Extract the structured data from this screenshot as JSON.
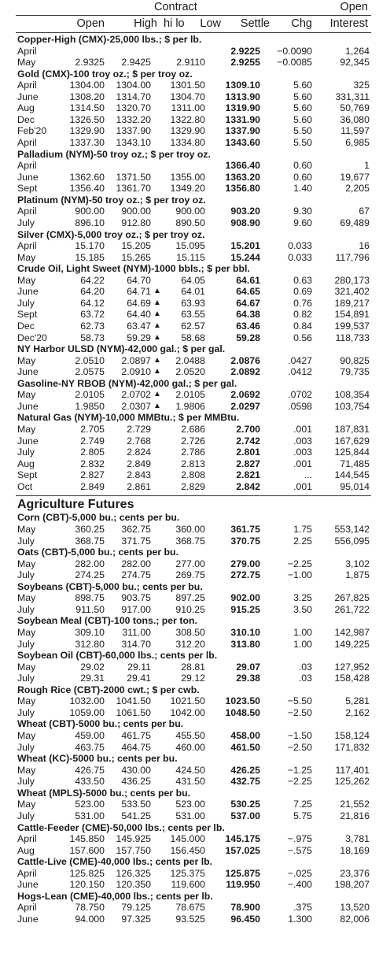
{
  "header": {
    "contract": "Contract",
    "open_interest_top": "Open",
    "columns": [
      "Open",
      "High",
      "hi lo",
      "Low",
      "Settle",
      "Chg",
      "Interest"
    ]
  },
  "metals_energy": [
    {
      "title": "Copper-High (CMX)-25,000 lbs.; $ per lb.",
      "rows": [
        {
          "name": "April",
          "open": "",
          "high": "",
          "low": "",
          "settle": "2.9225",
          "chg": "−0.0090",
          "oi": "1,264"
        },
        {
          "name": "May",
          "open": "2.9325",
          "high": "2.9425",
          "low": "2.9110",
          "settle": "2.9255",
          "chg": "−0.0085",
          "oi": "92,345"
        }
      ]
    },
    {
      "title": "Gold (CMX)-100 troy oz.; $ per troy oz.",
      "rows": [
        {
          "name": "April",
          "open": "1304.00",
          "high": "1304.00",
          "low": "1301.50",
          "settle": "1309.10",
          "chg": "5.60",
          "oi": "325"
        },
        {
          "name": "June",
          "open": "1308.20",
          "high": "1314.70",
          "low": "1304.70",
          "settle": "1313.90",
          "chg": "5.60",
          "oi": "331,311"
        },
        {
          "name": "Aug",
          "open": "1314.50",
          "high": "1320.70",
          "low": "1311.00",
          "settle": "1319.90",
          "chg": "5.60",
          "oi": "50,769"
        },
        {
          "name": "Dec",
          "open": "1326.50",
          "high": "1332.20",
          "low": "1322.80",
          "settle": "1331.90",
          "chg": "5.60",
          "oi": "36,080"
        },
        {
          "name": "Feb'20",
          "open": "1329.90",
          "high": "1337.90",
          "low": "1329.90",
          "settle": "1337.90",
          "chg": "5.50",
          "oi": "11,597"
        },
        {
          "name": "April",
          "open": "1337.30",
          "high": "1343.10",
          "low": "1334.80",
          "settle": "1343.60",
          "chg": "5.50",
          "oi": "6,985"
        }
      ]
    },
    {
      "title": "Palladium (NYM)-50 troy oz.; $ per troy oz.",
      "rows": [
        {
          "name": "April",
          "open": "",
          "high": "",
          "low": "",
          "settle": "1366.40",
          "chg": "0.60",
          "oi": "1"
        },
        {
          "name": "June",
          "open": "1362.60",
          "high": "1371.50",
          "low": "1355.00",
          "settle": "1363.20",
          "chg": "0.60",
          "oi": "19,677"
        },
        {
          "name": "Sept",
          "open": "1356.40",
          "high": "1361.70",
          "low": "1349.20",
          "settle": "1356.80",
          "chg": "1.40",
          "oi": "2,205"
        }
      ]
    },
    {
      "title": "Platinum (NYM)-50 troy oz.; $ per troy oz.",
      "rows": [
        {
          "name": "April",
          "open": "900.00",
          "high": "900.00",
          "low": "900.00",
          "settle": "903.20",
          "chg": "9.30",
          "oi": "67"
        },
        {
          "name": "July",
          "open": "896.10",
          "high": "912.80",
          "low": "890.50",
          "settle": "908.90",
          "chg": "9.60",
          "oi": "69,489"
        }
      ]
    },
    {
      "title": "Silver (CMX)-5,000 troy oz.; $ per troy oz.",
      "rows": [
        {
          "name": "April",
          "open": "15.170",
          "high": "15.205",
          "low": "15.095",
          "settle": "15.201",
          "chg": "0.033",
          "oi": "16"
        },
        {
          "name": "May",
          "open": "15.185",
          "high": "15.265",
          "low": "15.115",
          "settle": "15.244",
          "chg": "0.033",
          "oi": "117,796"
        }
      ]
    },
    {
      "title": "Crude Oil, Light Sweet (NYM)-1000 bbls.; $ per bbl.",
      "rows": [
        {
          "name": "May",
          "open": "64.22",
          "high": "64.70",
          "low": "64.05",
          "settle": "64.61",
          "chg": "0.63",
          "oi": "280,173"
        },
        {
          "name": "June",
          "open": "64.20",
          "high": "64.71",
          "hilo": "▲",
          "low": "64.01",
          "settle": "64.65",
          "chg": "0.69",
          "oi": "321,402"
        },
        {
          "name": "July",
          "open": "64.12",
          "high": "64.69",
          "hilo": "▲",
          "low": "63.93",
          "settle": "64.67",
          "chg": "0.76",
          "oi": "189,217"
        },
        {
          "name": "Sept",
          "open": "63.72",
          "high": "64.40",
          "hilo": "▲",
          "low": "63.55",
          "settle": "64.38",
          "chg": "0.82",
          "oi": "154,891"
        },
        {
          "name": "Dec",
          "open": "62.73",
          "high": "63.47",
          "hilo": "▲",
          "low": "62.57",
          "settle": "63.46",
          "chg": "0.84",
          "oi": "199,537"
        },
        {
          "name": "Dec'20",
          "open": "58.73",
          "high": "59.29",
          "hilo": "▲",
          "low": "58.68",
          "settle": "59.28",
          "chg": "0.56",
          "oi": "118,733"
        }
      ]
    },
    {
      "title": "NY Harbor ULSD (NYM)-42,000 gal.; $ per gal.",
      "rows": [
        {
          "name": "May",
          "open": "2.0510",
          "high": "2.0897",
          "hilo": "▲",
          "low": "2.0488",
          "settle": "2.0876",
          "chg": ".0427",
          "oi": "90,825"
        },
        {
          "name": "June",
          "open": "2.0575",
          "high": "2.0910",
          "hilo": "▲",
          "low": "2.0520",
          "settle": "2.0892",
          "chg": ".0412",
          "oi": "79,735"
        }
      ]
    },
    {
      "title": "Gasoline-NY RBOB (NYM)-42,000 gal.; $ per gal.",
      "rows": [
        {
          "name": "May",
          "open": "2.0105",
          "high": "2.0702",
          "hilo": "▲",
          "low": "2.0105",
          "settle": "2.0692",
          "chg": ".0702",
          "oi": "108,354"
        },
        {
          "name": "June",
          "open": "1.9850",
          "high": "2.0307",
          "hilo": "▲",
          "low": "1.9806",
          "settle": "2.0297",
          "chg": ".0598",
          "oi": "103,754"
        }
      ]
    },
    {
      "title": "Natural Gas (NYM)-10,000 MMBtu.; $ per MMBtu.",
      "rows": [
        {
          "name": "May",
          "open": "2.705",
          "high": "2.729",
          "low": "2.686",
          "settle": "2.700",
          "chg": ".001",
          "oi": "187,831"
        },
        {
          "name": "June",
          "open": "2.749",
          "high": "2.768",
          "low": "2.726",
          "settle": "2.742",
          "chg": ".003",
          "oi": "167,629"
        },
        {
          "name": "July",
          "open": "2.805",
          "high": "2.824",
          "low": "2.786",
          "settle": "2.801",
          "chg": ".003",
          "oi": "125,844"
        },
        {
          "name": "Aug",
          "open": "2.832",
          "high": "2.849",
          "low": "2.813",
          "settle": "2.827",
          "chg": ".001",
          "oi": "71,485"
        },
        {
          "name": "Sept",
          "open": "2.827",
          "high": "2.843",
          "low": "2.808",
          "settle": "2.821",
          "chg": "...",
          "oi": "144,545"
        },
        {
          "name": "Oct",
          "open": "2.849",
          "high": "2.861",
          "low": "2.829",
          "settle": "2.842",
          "chg": ".001",
          "oi": "95,014"
        }
      ]
    }
  ],
  "agriculture_title": "Agriculture Futures",
  "agriculture": [
    {
      "title": "Corn (CBT)-5,000 bu.; cents per bu.",
      "rows": [
        {
          "name": "May",
          "open": "360.25",
          "high": "362.75",
          "low": "360.00",
          "settle": "361.75",
          "chg": "1.75",
          "oi": "553,142"
        },
        {
          "name": "July",
          "open": "368.75",
          "high": "371.75",
          "low": "368.75",
          "settle": "370.75",
          "chg": "2.25",
          "oi": "556,095"
        }
      ]
    },
    {
      "title": "Oats (CBT)-5,000 bu.; cents per bu.",
      "rows": [
        {
          "name": "May",
          "open": "282.00",
          "high": "282.00",
          "low": "277.00",
          "settle": "279.00",
          "chg": "−2.25",
          "oi": "3,102"
        },
        {
          "name": "July",
          "open": "274.25",
          "high": "274.75",
          "low": "269.75",
          "settle": "272.75",
          "chg": "−1.00",
          "oi": "1,875"
        }
      ]
    },
    {
      "title": "Soybeans (CBT)-5,000 bu.; cents per bu.",
      "rows": [
        {
          "name": "May",
          "open": "898.75",
          "high": "903.75",
          "low": "897.25",
          "settle": "902.00",
          "chg": "3.25",
          "oi": "267,825"
        },
        {
          "name": "July",
          "open": "911.50",
          "high": "917.00",
          "low": "910.25",
          "settle": "915.25",
          "chg": "3.50",
          "oi": "261,722"
        }
      ]
    },
    {
      "title": "Soybean Meal (CBT)-100 tons.; per ton.",
      "rows": [
        {
          "name": "May",
          "open": "309.10",
          "high": "311.00",
          "low": "308.50",
          "settle": "310.10",
          "chg": "1.00",
          "oi": "142,987"
        },
        {
          "name": "July",
          "open": "312.80",
          "high": "314.70",
          "low": "312.20",
          "settle": "313.80",
          "chg": "1.00",
          "oi": "149,225"
        }
      ]
    },
    {
      "title": "Soybean Oil (CBT)-60,000 lbs.; cents per lb.",
      "rows": [
        {
          "name": "May",
          "open": "29.02",
          "high": "29.11",
          "low": "28.81",
          "settle": "29.07",
          "chg": ".03",
          "oi": "127,952"
        },
        {
          "name": "July",
          "open": "29.31",
          "high": "29.41",
          "low": "29.12",
          "settle": "29.38",
          "chg": ".03",
          "oi": "158,428"
        }
      ]
    },
    {
      "title": "Rough Rice (CBT)-2000 cwt.; $ per cwb.",
      "rows": [
        {
          "name": "May",
          "open": "1032.00",
          "high": "1041.50",
          "low": "1021.50",
          "settle": "1023.50",
          "chg": "−5.50",
          "oi": "5,281"
        },
        {
          "name": "July",
          "open": "1059.00",
          "high": "1061.50",
          "low": "1042.00",
          "settle": "1048.50",
          "chg": "−2.50",
          "oi": "2,162"
        }
      ]
    },
    {
      "title": "Wheat (CBT)-5000 bu.; cents per bu.",
      "rows": [
        {
          "name": "May",
          "open": "459.00",
          "high": "461.75",
          "low": "455.50",
          "settle": "458.00",
          "chg": "−1.50",
          "oi": "158,124"
        },
        {
          "name": "July",
          "open": "463.75",
          "high": "464.75",
          "low": "460.00",
          "settle": "461.50",
          "chg": "−2.50",
          "oi": "171,832"
        }
      ]
    },
    {
      "title": "Wheat (KC)-5000 bu.; cents per bu.",
      "rows": [
        {
          "name": "May",
          "open": "426.75",
          "high": "430.00",
          "low": "424.50",
          "settle": "426.25",
          "chg": "−1.25",
          "oi": "117,401"
        },
        {
          "name": "July",
          "open": "433.50",
          "high": "436.25",
          "low": "431.50",
          "settle": "432.75",
          "chg": "−2.25",
          "oi": "125,262"
        }
      ]
    },
    {
      "title": "Wheat (MPLS)-5000 bu.; cents per bu.",
      "rows": [
        {
          "name": "May",
          "open": "523.00",
          "high": "533.50",
          "low": "523.00",
          "settle": "530.25",
          "chg": "7.25",
          "oi": "21,552"
        },
        {
          "name": "July",
          "open": "531.00",
          "high": "541.25",
          "low": "531.00",
          "settle": "537.00",
          "chg": "5.75",
          "oi": "21,816"
        }
      ]
    },
    {
      "title": "Cattle-Feeder (CME)-50,000 lbs.; cents per lb.",
      "rows": [
        {
          "name": "April",
          "open": "145.850",
          "high": "145.925",
          "low": "145.000",
          "settle": "145.175",
          "chg": "−.975",
          "oi": "3,781"
        },
        {
          "name": "Aug",
          "open": "157.600",
          "high": "157.750",
          "low": "156.450",
          "settle": "157.025",
          "chg": "−.575",
          "oi": "18,169"
        }
      ]
    },
    {
      "title": "Cattle-Live (CME)-40,000 lbs.; cents per lb.",
      "rows": [
        {
          "name": "April",
          "open": "125.825",
          "high": "126.325",
          "low": "125.375",
          "settle": "125.875",
          "chg": "−.025",
          "oi": "23,376"
        },
        {
          "name": "June",
          "open": "120.150",
          "high": "120.350",
          "low": "119.600",
          "settle": "119.950",
          "chg": "−.400",
          "oi": "198,207"
        }
      ]
    },
    {
      "title": "Hogs-Lean (CME)-40,000 lbs.; cents per lb.",
      "rows": [
        {
          "name": "April",
          "open": "78.750",
          "high": "79.125",
          "low": "78.675",
          "settle": "78.900",
          "chg": ".375",
          "oi": "13,520"
        },
        {
          "name": "June",
          "open": "94.000",
          "high": "97.325",
          "low": "93.525",
          "settle": "96.450",
          "chg": "1.300",
          "oi": "82,006"
        }
      ]
    }
  ]
}
